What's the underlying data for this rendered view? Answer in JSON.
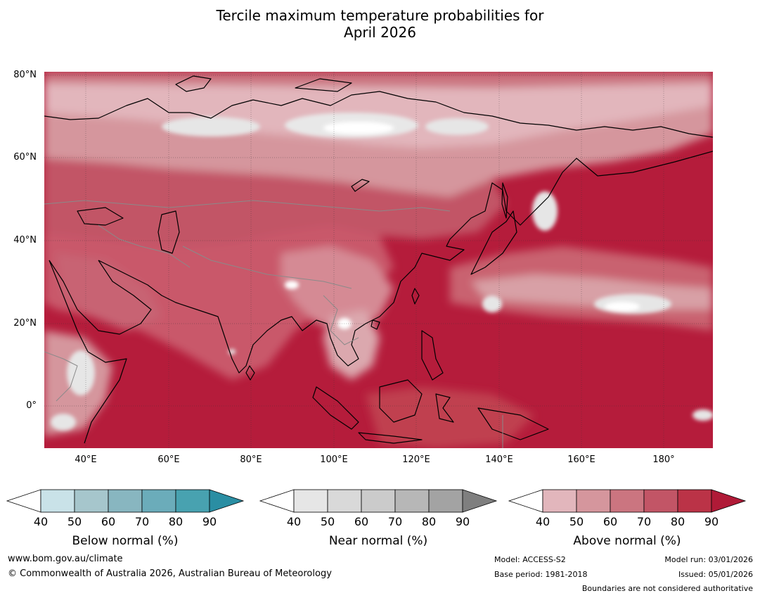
{
  "title_line1": "Tercile maximum temperature probabilities for",
  "title_line2": "April 2026",
  "map": {
    "lat_labels": [
      "80°N",
      "60°N",
      "40°N",
      "20°N",
      "0°"
    ],
    "lon_labels": [
      "40°E",
      "60°E",
      "80°E",
      "100°E",
      "120°E",
      "140°E",
      "160°E",
      "180°"
    ],
    "land_color": "#cd5868",
    "ocean_color": "#b51c3b"
  },
  "colorbars": [
    {
      "label": "Below normal (%)",
      "ticks": [
        "40",
        "50",
        "60",
        "70",
        "80",
        "90"
      ],
      "colors": [
        "#c9e2e8",
        "#a6c6cc",
        "#88b6c0",
        "#6bacba",
        "#48a2b0"
      ],
      "extend_color": "#2a8ea3"
    },
    {
      "label": "Near normal (%)",
      "ticks": [
        "40",
        "50",
        "60",
        "70",
        "80",
        "90"
      ],
      "colors": [
        "#e6e6e6",
        "#d9d9d9",
        "#cbcbcb",
        "#b7b7b7",
        "#a3a3a3"
      ],
      "extend_color": "#7f7f7f"
    },
    {
      "label": "Above normal (%)",
      "ticks": [
        "40",
        "50",
        "60",
        "70",
        "80",
        "90"
      ],
      "colors": [
        "#e2b6bc",
        "#d5969d",
        "#cb7580",
        "#c25566",
        "#bb3347"
      ],
      "extend_color": "#b01a37"
    }
  ],
  "footer": {
    "website": "www.bom.gov.au/climate",
    "copyright": "© Commonwealth of Australia 2026, Australian Bureau of Meteorology",
    "model": "Model: ACCESS-S2",
    "base_period": "Base period: 1981-2018",
    "model_run": "Model run: 03/01/2026",
    "issued": "Issued: 05/01/2026",
    "boundaries": "Boundaries are not considered authoritative"
  }
}
